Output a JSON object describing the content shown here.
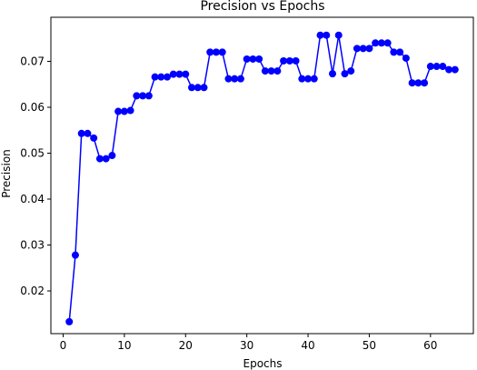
{
  "chart_data": {
    "type": "line",
    "title": "Precision vs Epochs",
    "xlabel": "Epochs",
    "ylabel": "Precision",
    "xlim": [
      -2,
      67
    ],
    "ylim": [
      0.0107,
      0.0796
    ],
    "xticks": [
      0,
      10,
      20,
      30,
      40,
      50,
      60
    ],
    "xtick_labels": [
      "0",
      "10",
      "20",
      "30",
      "40",
      "50",
      "60"
    ],
    "yticks": [
      0.02,
      0.03,
      0.04,
      0.05,
      0.06,
      0.07
    ],
    "ytick_labels": [
      "0.02",
      "0.03",
      "0.04",
      "0.05",
      "0.06",
      "0.07"
    ],
    "grid": false,
    "marker": "circle",
    "color": "#0000ff",
    "series": [
      {
        "x": [
          1,
          2,
          3,
          4,
          5,
          6,
          7,
          8,
          9,
          10,
          11,
          12,
          13,
          14,
          15,
          16,
          17,
          18,
          19,
          20,
          21,
          22,
          23,
          24,
          25,
          26,
          27,
          28,
          29,
          30,
          31,
          32,
          33,
          34,
          35,
          36,
          37,
          38,
          39,
          40,
          41,
          42,
          43,
          44,
          45,
          46,
          47,
          48,
          49,
          50,
          51,
          52,
          53,
          54,
          55,
          56,
          57,
          58,
          59,
          60,
          61,
          62,
          63,
          64
        ],
        "y": [
          0.0133,
          0.0278,
          0.0543,
          0.0543,
          0.0533,
          0.0488,
          0.0488,
          0.0495,
          0.0591,
          0.0591,
          0.0593,
          0.0625,
          0.0625,
          0.0625,
          0.0666,
          0.0666,
          0.0666,
          0.0672,
          0.0672,
          0.0672,
          0.0643,
          0.0643,
          0.0643,
          0.072,
          0.072,
          0.072,
          0.0662,
          0.0662,
          0.0662,
          0.0705,
          0.0705,
          0.0705,
          0.0679,
          0.0679,
          0.0679,
          0.0701,
          0.0701,
          0.0701,
          0.0662,
          0.0662,
          0.0662,
          0.0757,
          0.0757,
          0.0673,
          0.0757,
          0.0673,
          0.0679,
          0.0728,
          0.0728,
          0.0728,
          0.074,
          0.074,
          0.074,
          0.072,
          0.072,
          0.0707,
          0.0653,
          0.0653,
          0.0653,
          0.0689,
          0.0689,
          0.0689,
          0.0682,
          0.0682
        ]
      }
    ]
  }
}
